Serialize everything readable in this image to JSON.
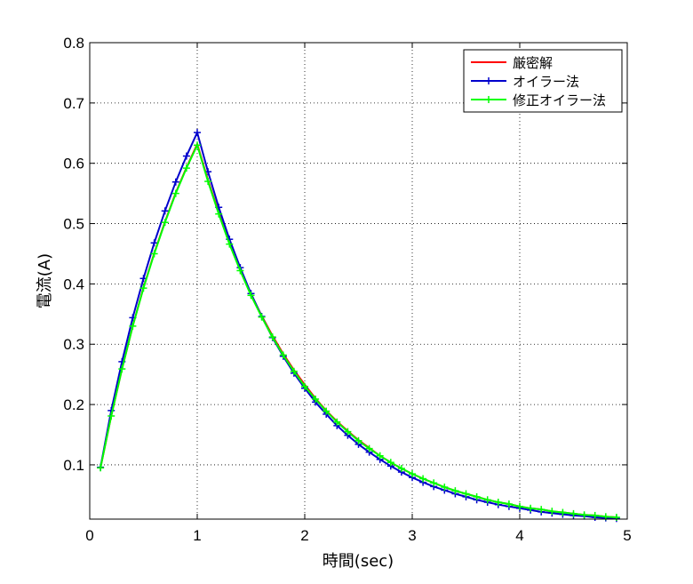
{
  "chart_data": {
    "type": "line",
    "xlabel": "時間(sec)",
    "ylabel": "電流(A)",
    "xlim": [
      0,
      5
    ],
    "ylim": [
      0.01,
      0.8
    ],
    "xticks": [
      0,
      1,
      2,
      3,
      4,
      5
    ],
    "yticks": [
      0.1,
      0.2,
      0.3,
      0.4,
      0.5,
      0.6,
      0.7,
      0.8
    ],
    "grid": true,
    "legend_position": "top-right",
    "x": [
      0.1,
      0.2,
      0.3,
      0.4,
      0.5,
      0.6,
      0.7,
      0.8,
      0.9,
      1.0,
      1.1,
      1.2,
      1.3,
      1.4,
      1.5,
      1.6,
      1.7,
      1.8,
      1.9,
      2.0,
      2.1,
      2.2,
      2.3,
      2.4,
      2.5,
      2.6,
      2.7,
      2.8,
      2.9,
      3.0,
      3.1,
      3.2,
      3.3,
      3.4,
      3.5,
      3.6,
      3.7,
      3.8,
      3.9,
      4.0,
      4.1,
      4.2,
      4.3,
      4.4,
      4.5,
      4.6,
      4.7,
      4.8,
      4.9
    ],
    "series": [
      {
        "name": "厳密解",
        "color": "#ff0000",
        "marker": "none",
        "values": [
          0.095,
          0.181,
          0.259,
          0.33,
          0.394,
          0.451,
          0.503,
          0.551,
          0.593,
          0.632,
          0.572,
          0.518,
          0.468,
          0.424,
          0.383,
          0.347,
          0.314,
          0.284,
          0.257,
          0.233,
          0.21,
          0.19,
          0.172,
          0.156,
          0.141,
          0.128,
          0.115,
          0.104,
          0.094,
          0.085,
          0.077,
          0.07,
          0.063,
          0.057,
          0.052,
          0.047,
          0.042,
          0.038,
          0.035,
          0.031,
          0.028,
          0.026,
          0.023,
          0.021,
          0.019,
          0.017,
          0.016,
          0.014,
          0.013
        ]
      },
      {
        "name": "オイラー法",
        "color": "#0000cc",
        "marker": "+",
        "values": [
          0.096,
          0.19,
          0.271,
          0.344,
          0.409,
          0.468,
          0.521,
          0.569,
          0.612,
          0.651,
          0.586,
          0.527,
          0.474,
          0.427,
          0.384,
          0.346,
          0.311,
          0.28,
          0.252,
          0.227,
          0.204,
          0.184,
          0.165,
          0.149,
          0.134,
          0.121,
          0.109,
          0.098,
          0.088,
          0.079,
          0.071,
          0.064,
          0.058,
          0.052,
          0.047,
          0.042,
          0.038,
          0.034,
          0.031,
          0.028,
          0.025,
          0.022,
          0.02,
          0.018,
          0.016,
          0.015,
          0.013,
          0.012,
          0.011
        ]
      },
      {
        "name": "修正オイラー法",
        "color": "#00ff00",
        "marker": "+",
        "values": [
          0.095,
          0.181,
          0.259,
          0.33,
          0.393,
          0.45,
          0.502,
          0.55,
          0.592,
          0.63,
          0.57,
          0.516,
          0.466,
          0.422,
          0.381,
          0.345,
          0.312,
          0.282,
          0.255,
          0.23,
          0.209,
          0.189,
          0.171,
          0.155,
          0.14,
          0.127,
          0.115,
          0.104,
          0.094,
          0.085,
          0.077,
          0.07,
          0.063,
          0.057,
          0.052,
          0.047,
          0.042,
          0.038,
          0.035,
          0.031,
          0.028,
          0.026,
          0.023,
          0.021,
          0.019,
          0.017,
          0.016,
          0.014,
          0.013
        ]
      }
    ]
  }
}
